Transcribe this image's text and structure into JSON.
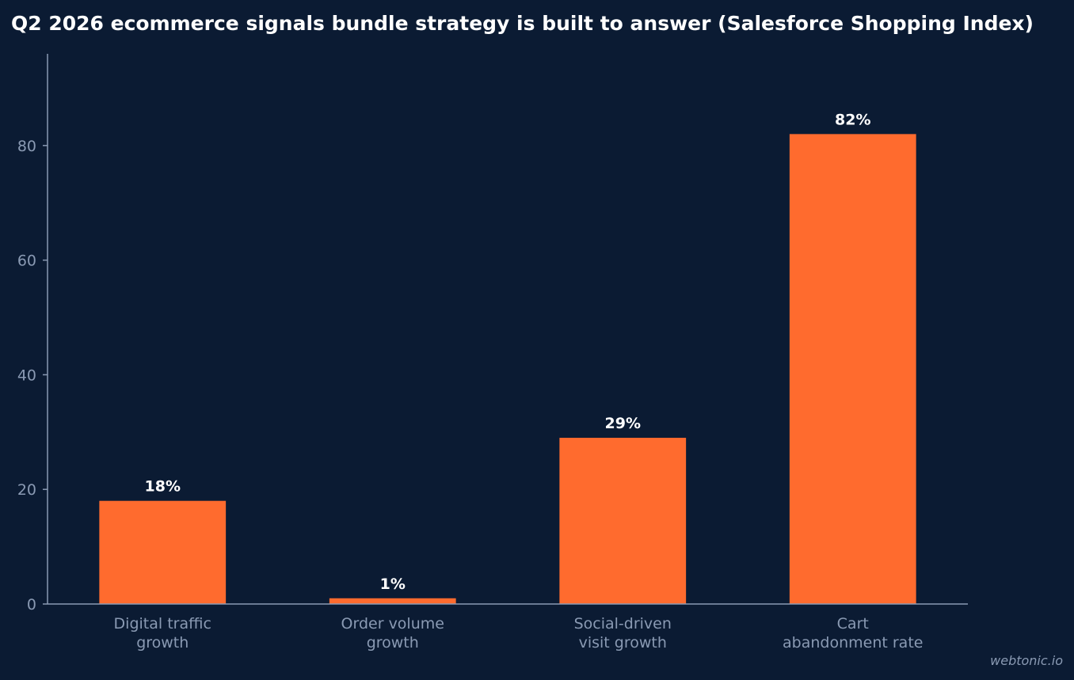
{
  "colors": {
    "background": "#0b1b33",
    "bar": "#ff6b2e",
    "axis": "#8a9ab3",
    "text_muted": "#8a9ab3",
    "text_strong": "#ffffff"
  },
  "watermark": "webtonic.io",
  "chart_data": {
    "type": "bar",
    "title": "Q2 2026 ecommerce signals bundle strategy is built to answer (Salesforce Shopping Index)",
    "xlabel": "",
    "ylabel": "",
    "categories": [
      [
        "Digital traffic",
        "growth"
      ],
      [
        "Order volume",
        "growth"
      ],
      [
        "Social-driven",
        "visit growth"
      ],
      [
        "Cart",
        "abandonment rate"
      ]
    ],
    "values": [
      18,
      1,
      29,
      82
    ],
    "data_labels": [
      "18%",
      "1%",
      "29%",
      "82%"
    ],
    "ylim": [
      0,
      96
    ],
    "yticks": [
      0,
      20,
      40,
      60,
      80
    ],
    "grid": false,
    "legend": "none"
  }
}
